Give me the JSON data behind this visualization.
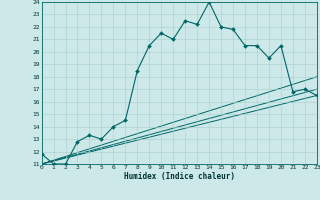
{
  "xlabel": "Humidex (Indice chaleur)",
  "bg_color": "#cce8e8",
  "grid_color": "#aacccc",
  "line_color": "#006666",
  "xlim": [
    0,
    23
  ],
  "ylim": [
    11,
    24
  ],
  "yticks": [
    11,
    12,
    13,
    14,
    15,
    16,
    17,
    18,
    19,
    20,
    21,
    22,
    23,
    24
  ],
  "xticks": [
    0,
    1,
    2,
    3,
    4,
    5,
    6,
    7,
    8,
    9,
    10,
    11,
    12,
    13,
    14,
    15,
    16,
    17,
    18,
    19,
    20,
    21,
    22,
    23
  ],
  "series1_x": [
    0,
    1,
    2,
    3,
    4,
    5,
    6,
    7,
    8,
    9,
    10,
    11,
    12,
    13,
    14,
    15,
    16,
    17,
    18,
    19,
    20,
    21,
    22,
    23
  ],
  "series1_y": [
    11.8,
    11.0,
    11.0,
    12.8,
    13.3,
    13.0,
    14.0,
    14.5,
    18.5,
    20.5,
    21.5,
    21.0,
    22.5,
    22.2,
    24.0,
    22.0,
    21.8,
    20.5,
    20.5,
    19.5,
    20.5,
    16.8,
    17.0,
    16.5
  ],
  "series2_x": [
    0,
    23
  ],
  "series2_y": [
    11.0,
    16.5
  ],
  "series3_x": [
    0,
    23
  ],
  "series3_y": [
    11.0,
    17.0
  ],
  "series4_x": [
    0,
    23
  ],
  "series4_y": [
    11.0,
    18.0
  ]
}
